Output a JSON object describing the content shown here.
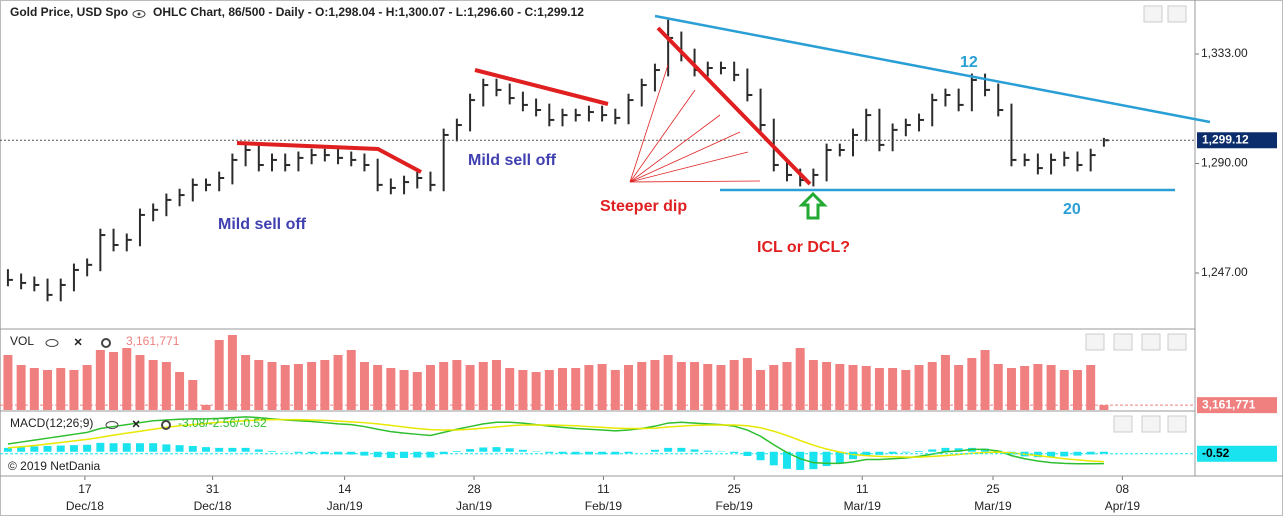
{
  "header": {
    "title": "Gold Price, USD Spot",
    "info": "OHLC Chart, 86/500 - Daily - O:1,298.04 - H:1,300.07 - L:1,296.60 - C:1,299.12",
    "copyright": "© 2019 NetDania"
  },
  "annotations": [
    "Mild sell off",
    "Mild sell off",
    "Steeper dip",
    "ICL or DCL?",
    "12",
    "20"
  ],
  "chart_data": [
    {
      "type": "ohlc",
      "color": "#2b2b2b",
      "ylim": [
        1225.4,
        1354.2
      ],
      "yticks": [
        {
          "value": 1247,
          "label": "1,247.00"
        },
        {
          "value": 1290,
          "label": "1,290.00"
        },
        {
          "value": 1333,
          "label": "1,333.00"
        }
      ],
      "xlim": [
        -0.6,
        89.9
      ],
      "xticks": [
        {
          "value": 5.83,
          "label": "17",
          "sublabel": "Dec/18"
        },
        {
          "value": 15.5,
          "label": "31",
          "sublabel": "Dec/18"
        },
        {
          "value": 25.5,
          "label": "14",
          "sublabel": "Jan/19"
        },
        {
          "value": 35.3,
          "label": "28",
          "sublabel": "Jan/19"
        },
        {
          "value": 45.1,
          "label": "11",
          "sublabel": "Feb/19"
        },
        {
          "value": 55,
          "label": "25",
          "sublabel": "Feb/19"
        },
        {
          "value": 64.7,
          "label": "11",
          "sublabel": "Mar/19"
        },
        {
          "value": 74.6,
          "label": "25",
          "sublabel": "Mar/19"
        },
        {
          "value": 84.4,
          "label": "08",
          "sublabel": "Apr/19"
        }
      ],
      "high": [
        1248.5,
        1246.8,
        1245.6,
        1244.8,
        1244.8,
        1250.7,
        1252.7,
        1264.4,
        1264.4,
        1262.5,
        1272.3,
        1274.3,
        1278.2,
        1280.1,
        1284.1,
        1284.1,
        1286.8,
        1293.9,
        1297.8,
        1297.8,
        1293.9,
        1293.9,
        1294.7,
        1295.8,
        1295.8,
        1295.8,
        1294.7,
        1293.9,
        1291.9,
        1284.1,
        1285.2,
        1286.8,
        1286.8,
        1303.7,
        1307.6,
        1317.4,
        1323.3,
        1323.3,
        1321.4,
        1318.2,
        1315.5,
        1313.5,
        1311.5,
        1311.5,
        1312.7,
        1312.7,
        1311.5,
        1317.4,
        1323.3,
        1329.2,
        1346.5,
        1341.8,
        1335.1,
        1330.0,
        1330.0,
        1330.0,
        1327.3,
        1319.4,
        1307.6,
        1291.9,
        1288.0,
        1288.0,
        1297.8,
        1297.8,
        1303.7,
        1311.5,
        1311.5,
        1305.7,
        1307.6,
        1309.6,
        1317.4,
        1319.4,
        1319.4,
        1325.3,
        1325.3,
        1321.4,
        1313.5,
        1293.9,
        1293.9,
        1293.9,
        1294.7,
        1294.7,
        1295.8,
        1300.07
      ],
      "low": [
        1241.8,
        1240.6,
        1239.8,
        1235.9,
        1235.9,
        1239.8,
        1245.7,
        1247.7,
        1255.5,
        1255.5,
        1257.5,
        1267.3,
        1269.3,
        1273.2,
        1275.1,
        1279.1,
        1279.1,
        1281.8,
        1288.9,
        1286.9,
        1286.9,
        1286.9,
        1286.9,
        1289.7,
        1290.8,
        1289.7,
        1288.9,
        1286.9,
        1279.1,
        1277.9,
        1277.9,
        1280.2,
        1279.1,
        1279.1,
        1298.7,
        1302.6,
        1312.4,
        1316.4,
        1313.2,
        1310.5,
        1308.5,
        1304.6,
        1304.6,
        1306.5,
        1306.5,
        1306.5,
        1305.4,
        1305.4,
        1312.4,
        1318.3,
        1324.2,
        1330.1,
        1324.2,
        1324.2,
        1325.0,
        1322.3,
        1314.4,
        1302.6,
        1286.9,
        1283.0,
        1281.0,
        1281.0,
        1283.0,
        1292.8,
        1292.8,
        1298.7,
        1294.8,
        1294.8,
        1300.7,
        1302.6,
        1304.6,
        1312.4,
        1310.5,
        1310.5,
        1316.4,
        1308.5,
        1288.9,
        1288.9,
        1285.7,
        1285.7,
        1288.9,
        1286.9,
        1286.9,
        1296.6
      ],
      "close": [
        1244.3,
        1243.1,
        1242.3,
        1238.4,
        1242.3,
        1248.2,
        1250.2,
        1261.9,
        1258.0,
        1260.0,
        1269.8,
        1271.8,
        1275.7,
        1277.6,
        1281.6,
        1281.6,
        1284.3,
        1291.4,
        1295.3,
        1289.4,
        1291.4,
        1289.4,
        1292.2,
        1293.3,
        1293.3,
        1292.2,
        1291.4,
        1289.4,
        1281.6,
        1280.4,
        1282.7,
        1284.3,
        1281.6,
        1301.2,
        1305.1,
        1314.9,
        1320.8,
        1318.9,
        1315.7,
        1313.0,
        1311.0,
        1307.1,
        1309.0,
        1309.0,
        1310.2,
        1309.0,
        1307.9,
        1314.9,
        1320.8,
        1326.7,
        1339.3,
        1332.6,
        1326.7,
        1327.5,
        1327.5,
        1324.8,
        1316.9,
        1305.1,
        1289.4,
        1285.5,
        1283.5,
        1285.5,
        1295.3,
        1295.3,
        1301.2,
        1309.0,
        1297.3,
        1303.2,
        1305.1,
        1307.1,
        1314.9,
        1316.9,
        1313.0,
        1322.8,
        1318.9,
        1311.0,
        1291.4,
        1291.4,
        1288.2,
        1291.4,
        1292.2,
        1289.4,
        1293.3,
        1299.12
      ],
      "last_label": "1,299.12",
      "last_color": "#0c2d6b"
    },
    {
      "type": "bar",
      "title": "VOL",
      "color": "#f08080",
      "ylim": [
        0,
        52000000
      ],
      "values": [
        35750000,
        29250000,
        27300000,
        26000000,
        27300000,
        26000000,
        29250000,
        39000000,
        37700000,
        40300000,
        35750000,
        32500000,
        31200000,
        24700000,
        19500000,
        3250000,
        45500000,
        48750000,
        35750000,
        32500000,
        31200000,
        29250000,
        29900000,
        31200000,
        32500000,
        35750000,
        39000000,
        31200000,
        29250000,
        27300000,
        26000000,
        24700000,
        29250000,
        31200000,
        32500000,
        29250000,
        31200000,
        32500000,
        27300000,
        26000000,
        24700000,
        26000000,
        27300000,
        27300000,
        29250000,
        29900000,
        26000000,
        29250000,
        31200000,
        32500000,
        35750000,
        31200000,
        31200000,
        29900000,
        29250000,
        32500000,
        33800000,
        26000000,
        29250000,
        31200000,
        40300000,
        32500000,
        31200000,
        29900000,
        29250000,
        28600000,
        27300000,
        27300000,
        26000000,
        29250000,
        31200000,
        35750000,
        29250000,
        33800000,
        39000000,
        29900000,
        27300000,
        28600000,
        29900000,
        29250000,
        26000000,
        26000000,
        29250000,
        3161771
      ],
      "last_label": "3,161,771"
    },
    {
      "type": "macd",
      "title": "MACD(12;26;9)",
      "ylim": [
        -6,
        10
      ],
      "legend_values": "-3.08/-2.56/-0.52",
      "last_label": "-0.52",
      "series": [
        {
          "color": "#2fbf2f",
          "values": [
            2,
            2.5,
            3,
            3.5,
            4,
            4.5,
            5,
            6,
            6.5,
            7,
            7.5,
            8,
            8.2,
            8.4,
            8.5,
            8.5,
            8.6,
            8.8,
            9,
            8.8,
            8.5,
            8.2,
            8,
            7.8,
            7.5,
            7.2,
            7,
            6.5,
            5.8,
            5.2,
            4.8,
            4.5,
            4.2,
            5,
            5.8,
            6.5,
            7.2,
            7.6,
            7.6,
            7.4,
            7,
            6.6,
            6.3,
            6,
            5.8,
            5.6,
            5.4,
            5.6,
            6,
            6.6,
            7.4,
            7.6,
            7.4,
            7.2,
            7,
            6.6,
            5.6,
            4,
            1.8,
            -0.2,
            -1.8,
            -2.8,
            -3,
            -3,
            -2.6,
            -2,
            -2,
            -1.8,
            -1.6,
            -1.2,
            -0.6,
            0,
            0.2,
            0.6,
            0.6,
            0.2,
            -1,
            -1.8,
            -2.4,
            -2.8,
            -3,
            -3.1,
            -3.1,
            -3.08
          ]
        },
        {
          "color": "#e8e800",
          "values": [
            1,
            1.3,
            1.6,
            2,
            2.4,
            2.8,
            3.2,
            3.7,
            4.3,
            4.8,
            5.3,
            5.8,
            6.3,
            6.7,
            7,
            7.3,
            7.6,
            7.8,
            8,
            8.2,
            8.3,
            8.3,
            8.3,
            8.2,
            8.1,
            7.9,
            7.7,
            7.5,
            7.2,
            6.8,
            6.4,
            6,
            5.7,
            5.6,
            5.6,
            5.8,
            6.1,
            6.4,
            6.7,
            6.9,
            6.9,
            6.9,
            6.8,
            6.7,
            6.5,
            6.3,
            6.1,
            6,
            6,
            6.1,
            6.4,
            6.6,
            6.8,
            6.9,
            6.9,
            6.9,
            6.7,
            6.2,
            5.3,
            4.2,
            2.9,
            1.7,
            0.7,
            -0.1,
            -0.7,
            -1,
            -1.2,
            -1.3,
            -1.4,
            -1.4,
            -1.2,
            -1,
            -0.7,
            -0.4,
            -0.2,
            -0.1,
            -0.3,
            -0.6,
            -1,
            -1.4,
            -1.8,
            -2.1,
            -2.4,
            -2.56
          ]
        }
      ],
      "histogram": {
        "color": "#19e3ee",
        "values": [
          1,
          1.2,
          1.4,
          1.5,
          1.6,
          1.7,
          1.8,
          2.3,
          2.2,
          2.2,
          2.2,
          2.2,
          1.9,
          1.7,
          1.5,
          1.2,
          1,
          1,
          1,
          0.6,
          0.2,
          -0.1,
          -0.3,
          -0.4,
          -0.6,
          -0.7,
          -0.7,
          -1,
          -1.4,
          -1.6,
          -1.6,
          -1.5,
          -1.5,
          -0.6,
          0.2,
          0.7,
          1.1,
          1.2,
          0.9,
          0.5,
          0.1,
          -0.3,
          -0.5,
          -0.7,
          -0.7,
          -0.7,
          -0.7,
          -0.4,
          0,
          0.5,
          1,
          1,
          0.6,
          0.3,
          0.1,
          -0.3,
          -1.1,
          -2.2,
          -3.5,
          -4.4,
          -4.7,
          -4.5,
          -3.7,
          -2.9,
          -1.9,
          -1,
          -0.8,
          -0.5,
          -0.2,
          0.2,
          0.6,
          1,
          0.9,
          1,
          0.8,
          0.3,
          -0.7,
          -1.2,
          -1.4,
          -1.4,
          -1.2,
          -1,
          -0.7,
          -0.52
        ]
      }
    }
  ]
}
